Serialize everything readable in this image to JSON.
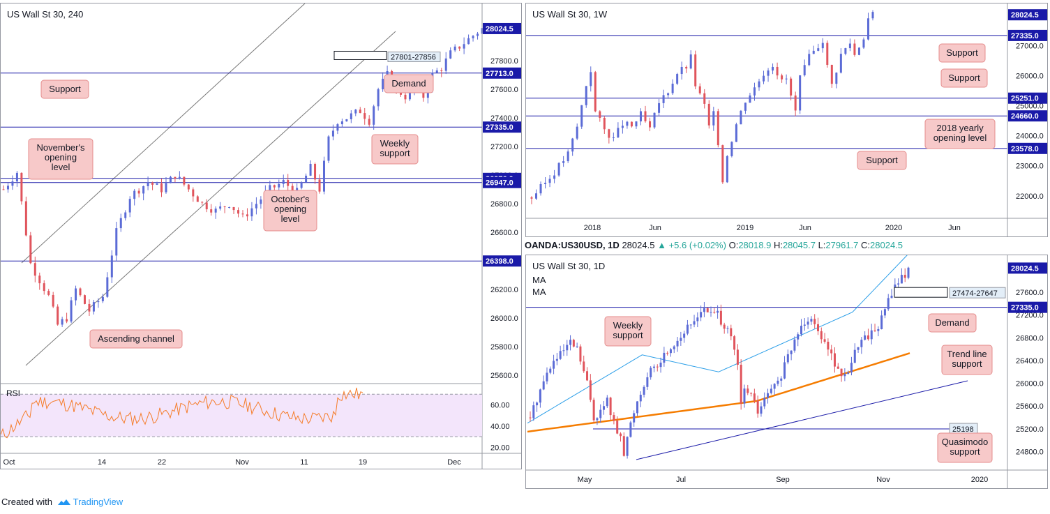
{
  "footer": {
    "created_with": "Created with",
    "brand": "TradingView",
    "brand_icon": "tradingview-logo-icon"
  },
  "colors": {
    "bull": "#5b6bd6",
    "bear": "#e0545c",
    "level": "#1a1aa8",
    "channel": "#787878",
    "label_bg": "#f7c9c9",
    "label_border": "#e48c8c",
    "price_tag": "#1a1aa8",
    "rsi_line": "#f57c29",
    "rsi_band": "#f3e5fb",
    "ma_blue": "#2a9ee8",
    "ma_orange": "#f57c00"
  },
  "header_legend": {
    "symbol": "OANDA:US30USD, 1D",
    "last": "28024.5",
    "change": "+5.6 (+0.02%)",
    "o_label": "O:",
    "o": "28018.9",
    "h_label": "H:",
    "h": "28045.7",
    "l_label": "L:",
    "l": "27961.7",
    "c_label": "C:",
    "c": "28024.5"
  },
  "chart_data": [
    {
      "id": "h4",
      "type": "candlestick",
      "title": "US Wall St 30, 240",
      "ylim": [
        25550,
        28200
      ],
      "y_ticks": [
        25600,
        25800,
        26000,
        26200,
        26400,
        26600,
        26800,
        27000,
        27200,
        27400,
        27600,
        27800
      ],
      "x_ticks": [
        "Oct",
        "14",
        "22",
        "Nov",
        "11",
        "19",
        "Dec"
      ],
      "path": [
        [
          0,
          26900
        ],
        [
          3,
          27020
        ],
        [
          6,
          26380
        ],
        [
          10,
          26150
        ],
        [
          12,
          25950
        ],
        [
          14,
          26000
        ],
        [
          16,
          26200
        ],
        [
          19,
          26050
        ],
        [
          22,
          26150
        ],
        [
          25,
          26600
        ],
        [
          28,
          26850
        ],
        [
          32,
          26950
        ],
        [
          35,
          26900
        ],
        [
          38,
          27000
        ],
        [
          41,
          26900
        ],
        [
          44,
          26800
        ],
        [
          47,
          26750
        ],
        [
          50,
          26800
        ],
        [
          53,
          26700
        ],
        [
          56,
          26800
        ],
        [
          59,
          26900
        ],
        [
          62,
          26950
        ],
        [
          65,
          26880
        ],
        [
          68,
          27050
        ],
        [
          70,
          26900
        ],
        [
          72,
          27250
        ],
        [
          74,
          27380
        ],
        [
          76,
          27400
        ],
        [
          79,
          27450
        ],
        [
          81,
          27380
        ],
        [
          83,
          27600
        ],
        [
          85,
          27700
        ],
        [
          87,
          27600
        ],
        [
          89,
          27550
        ],
        [
          91,
          27600
        ],
        [
          93,
          27550
        ],
        [
          95,
          27700
        ],
        [
          97,
          27750
        ],
        [
          99,
          27850
        ],
        [
          101,
          27900
        ],
        [
          103,
          27950
        ],
        [
          105,
          28000
        ],
        [
          106,
          28024
        ]
      ],
      "levels": [
        {
          "value": 28024.5,
          "label": "28024.5",
          "line": false
        },
        {
          "value": 27713.0,
          "label": "27713.0",
          "line": true
        },
        {
          "value": 27335.0,
          "label": "27335.0",
          "line": true
        },
        {
          "value": 26976.0,
          "label": "26976.0",
          "line": true
        },
        {
          "value": 26947.0,
          "label": "26947.0",
          "line": true
        },
        {
          "value": 26398.0,
          "label": "26398.0",
          "line": true
        }
      ],
      "zone": {
        "label": "27801-27856",
        "low": 27801,
        "high": 27856
      },
      "annotations": [
        "Support",
        "Demand",
        "November's opening level",
        "Weekly support",
        "October's opening level",
        "Ascending channel"
      ],
      "rsi": {
        "label": "RSI",
        "ylim": [
          15,
          80
        ],
        "ticks": [
          20,
          40,
          60
        ],
        "band": [
          30,
          70
        ]
      }
    },
    {
      "id": "weekly",
      "type": "candlestick",
      "title": "US Wall St 30, 1W",
      "ylim": [
        21300,
        28400
      ],
      "y_ticks": [
        22000,
        23000,
        24000,
        25000,
        26000,
        27000
      ],
      "x_ticks": [
        "2018",
        "Jun",
        "2019",
        "Jun",
        "2020",
        "Jun"
      ],
      "path": [
        [
          0,
          21950
        ],
        [
          4,
          22600
        ],
        [
          8,
          23400
        ],
        [
          10,
          24300
        ],
        [
          12,
          25700
        ],
        [
          13,
          26200
        ],
        [
          14,
          24800
        ],
        [
          16,
          24200
        ],
        [
          18,
          23900
        ],
        [
          20,
          24400
        ],
        [
          22,
          24300
        ],
        [
          24,
          24700
        ],
        [
          26,
          24200
        ],
        [
          28,
          25100
        ],
        [
          30,
          25500
        ],
        [
          32,
          26100
        ],
        [
          34,
          26300
        ],
        [
          35,
          26600
        ],
        [
          36,
          25700
        ],
        [
          38,
          25000
        ],
        [
          39,
          24300
        ],
        [
          40,
          24700
        ],
        [
          41,
          23800
        ],
        [
          42,
          22500
        ],
        [
          43,
          23400
        ],
        [
          45,
          24400
        ],
        [
          47,
          25200
        ],
        [
          49,
          25600
        ],
        [
          51,
          26100
        ],
        [
          53,
          26400
        ],
        [
          55,
          25800
        ],
        [
          56,
          25900
        ],
        [
          57,
          25300
        ],
        [
          58,
          24800
        ],
        [
          59,
          25900
        ],
        [
          61,
          26600
        ],
        [
          63,
          27000
        ],
        [
          64,
          27200
        ],
        [
          65,
          26300
        ],
        [
          66,
          25700
        ],
        [
          67,
          26200
        ],
        [
          68,
          26700
        ],
        [
          70,
          27100
        ],
        [
          71,
          26700
        ],
        [
          72,
          27000
        ],
        [
          73,
          27300
        ],
        [
          74,
          27900
        ],
        [
          75,
          28024
        ]
      ],
      "levels": [
        {
          "value": 28024.5,
          "label": "28024.5",
          "line": false
        },
        {
          "value": 27335.0,
          "label": "27335.0",
          "line": true
        },
        {
          "value": 25251.0,
          "label": "25251.0",
          "line": true
        },
        {
          "value": 24660.0,
          "label": "24660.0",
          "line": true
        },
        {
          "value": 23578.0,
          "label": "23578.0",
          "line": true
        }
      ],
      "annotations": [
        "Support",
        "Support",
        "2018 yearly opening level",
        "Support"
      ]
    },
    {
      "id": "daily",
      "type": "candlestick",
      "title": "US Wall St 30, 1D",
      "ylim": [
        24500,
        28250
      ],
      "y_ticks": [
        24800,
        25200,
        25600,
        26000,
        26400,
        26800,
        27200,
        27600
      ],
      "x_ticks": [
        "May",
        "Jul",
        "Sep",
        "Nov",
        "2020"
      ],
      "path": [
        [
          0,
          25400
        ],
        [
          3,
          25900
        ],
        [
          6,
          26300
        ],
        [
          9,
          26500
        ],
        [
          12,
          26700
        ],
        [
          14,
          26600
        ],
        [
          17,
          26000
        ],
        [
          19,
          25400
        ],
        [
          21,
          25500
        ],
        [
          23,
          25700
        ],
        [
          25,
          25300
        ],
        [
          27,
          25000
        ],
        [
          28,
          24750
        ],
        [
          30,
          25300
        ],
        [
          32,
          25700
        ],
        [
          34,
          26000
        ],
        [
          36,
          26200
        ],
        [
          38,
          26300
        ],
        [
          40,
          26500
        ],
        [
          43,
          26700
        ],
        [
          46,
          26900
        ],
        [
          49,
          27100
        ],
        [
          51,
          27300
        ],
        [
          53,
          27250
        ],
        [
          56,
          27200
        ],
        [
          58,
          27000
        ],
        [
          60,
          26800
        ],
        [
          62,
          26300
        ],
        [
          63,
          25600
        ],
        [
          64,
          25900
        ],
        [
          66,
          25800
        ],
        [
          68,
          25500
        ],
        [
          70,
          25700
        ],
        [
          72,
          25900
        ],
        [
          74,
          26000
        ],
        [
          76,
          26300
        ],
        [
          78,
          26600
        ],
        [
          80,
          26900
        ],
        [
          82,
          27100
        ],
        [
          84,
          27200
        ],
        [
          86,
          26900
        ],
        [
          88,
          26800
        ],
        [
          90,
          26500
        ],
        [
          92,
          26200
        ],
        [
          94,
          26100
        ],
        [
          96,
          26400
        ],
        [
          98,
          26700
        ],
        [
          100,
          26800
        ],
        [
          102,
          26900
        ],
        [
          104,
          27000
        ],
        [
          106,
          27300
        ],
        [
          108,
          27600
        ],
        [
          110,
          27800
        ],
        [
          112,
          27900
        ],
        [
          113,
          28024
        ]
      ],
      "levels": [
        {
          "value": 28024.5,
          "label": "28024.5",
          "line": false
        },
        {
          "value": 27335.0,
          "label": "27335.0",
          "line": true
        },
        {
          "value": 25198,
          "label": "25198",
          "line": true,
          "partial": true
        }
      ],
      "zone": {
        "label": "27474-27647",
        "low": 27474,
        "high": 27647
      },
      "ma_labels": [
        "MA",
        "MA"
      ],
      "annotations": [
        "Weekly support",
        "Demand",
        "Trend line support",
        "Quasimodo support"
      ]
    }
  ]
}
